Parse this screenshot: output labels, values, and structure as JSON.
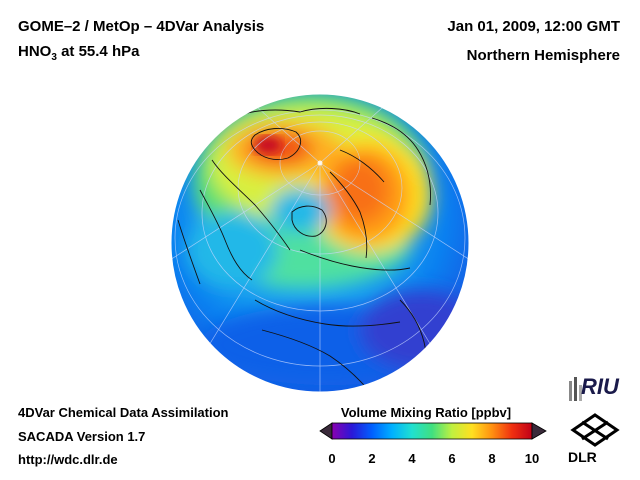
{
  "header": {
    "title_left_line1": "GOME–2 / MetOp – 4DVar Analysis",
    "species": "HNO",
    "species_subscript": "3",
    "level_text": " at 55.4 hPa",
    "datetime": "Jan 01, 2009, 12:00 GMT",
    "region": "Northern Hemisphere"
  },
  "footer": {
    "system": "4DVar Chemical Data Assimilation",
    "version": "SACADA Version 1.7",
    "url": "http://wdc.dlr.de"
  },
  "colorbar": {
    "title": "Volume Mixing Ratio [ppbv]",
    "ticks": [
      "0",
      "2",
      "4",
      "6",
      "8",
      "10"
    ],
    "min": 0,
    "max": 10,
    "colors": [
      "#8a00b0",
      "#2a18d8",
      "#0060ff",
      "#00b0ff",
      "#20e0d0",
      "#40e080",
      "#c0f040",
      "#ffe020",
      "#ff9010",
      "#f03010",
      "#c00018"
    ]
  },
  "logos": {
    "riu": "RIU",
    "dlr": "DLR"
  }
}
